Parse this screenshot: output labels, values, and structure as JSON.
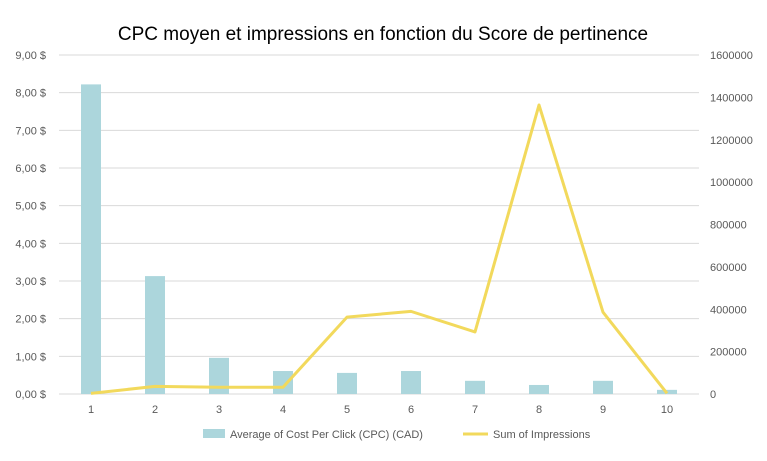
{
  "chart_data": {
    "type": "bar+line",
    "title": "CPC moyen et impressions en fonction du Score de pertinence",
    "categories": [
      "1",
      "2",
      "3",
      "4",
      "5",
      "6",
      "7",
      "8",
      "9",
      "10"
    ],
    "series": [
      {
        "name": "Average of Cost Per Click (CPC) (CAD)",
        "type": "bar",
        "axis": "left",
        "color": "#acd6dc",
        "values": [
          8.22,
          3.13,
          0.96,
          0.61,
          0.56,
          0.61,
          0.35,
          0.24,
          0.35,
          0.11
        ]
      },
      {
        "name": "Sum of Impressions",
        "type": "line",
        "axis": "right",
        "color": "#f2d95c",
        "values": [
          3000,
          36000,
          32000,
          32000,
          363000,
          390000,
          293000,
          1364000,
          386000,
          3000
        ]
      }
    ],
    "y_left": {
      "range": [
        0,
        9
      ],
      "ticks": [
        "0,00 $",
        "1,00 $",
        "2,00 $",
        "3,00 $",
        "4,00 $",
        "5,00 $",
        "6,00 $",
        "7,00 $",
        "8,00 $",
        "9,00 $"
      ]
    },
    "y_right": {
      "range": [
        0,
        1600000
      ],
      "ticks": [
        "0",
        "200000",
        "400000",
        "600000",
        "800000",
        "1000000",
        "1200000",
        "1400000",
        "1600000"
      ]
    },
    "grid": true,
    "legend": "bottom"
  }
}
